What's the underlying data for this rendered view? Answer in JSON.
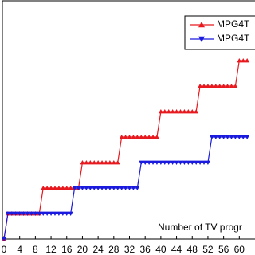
{
  "chart_data": {
    "type": "line",
    "x_label": "Number of TV progr",
    "x": [
      0,
      1,
      2,
      3,
      4,
      5,
      6,
      7,
      8,
      9,
      10,
      11,
      12,
      13,
      14,
      15,
      16,
      17,
      18,
      19,
      20,
      21,
      22,
      23,
      24,
      25,
      26,
      27,
      28,
      29,
      30,
      31,
      32,
      33,
      34,
      35,
      36,
      37,
      38,
      39,
      40,
      41,
      42,
      43,
      44,
      45,
      46,
      47,
      48,
      49,
      50,
      51,
      52,
      53,
      54,
      55,
      56,
      57,
      58,
      59,
      60,
      61,
      62
    ],
    "series": [
      {
        "name": "MPG4T",
        "color": "#e8191e",
        "marker": "triangle-up",
        "values": [
          0,
          1,
          1,
          1,
          1,
          1,
          1,
          1,
          1,
          1,
          2,
          2,
          2,
          2,
          2,
          2,
          2,
          2,
          2,
          2,
          3,
          3,
          3,
          3,
          3,
          3,
          3,
          3,
          3,
          3,
          4,
          4,
          4,
          4,
          4,
          4,
          4,
          4,
          4,
          4,
          5,
          5,
          5,
          5,
          5,
          5,
          5,
          5,
          5,
          5,
          6,
          6,
          6,
          6,
          6,
          6,
          6,
          6,
          6,
          6,
          7,
          7,
          7
        ]
      },
      {
        "name": "MPG4T",
        "color": "#1a1adf",
        "marker": "triangle-down",
        "values": [
          0,
          1,
          1,
          1,
          1,
          1,
          1,
          1,
          1,
          1,
          1,
          1,
          1,
          1,
          1,
          1,
          1,
          1,
          2,
          2,
          2,
          2,
          2,
          2,
          2,
          2,
          2,
          2,
          2,
          2,
          2,
          2,
          2,
          2,
          2,
          3,
          3,
          3,
          3,
          3,
          3,
          3,
          3,
          3,
          3,
          3,
          3,
          3,
          3,
          3,
          3,
          3,
          3,
          4,
          4,
          4,
          4,
          4,
          4,
          4,
          4,
          4,
          4
        ]
      }
    ],
    "xlim": [
      0,
      64
    ],
    "xticks": [
      0,
      4,
      8,
      12,
      16,
      20,
      24,
      28,
      32,
      36,
      40,
      44,
      48,
      52,
      56,
      60
    ],
    "ylim": [
      0,
      9
    ]
  }
}
